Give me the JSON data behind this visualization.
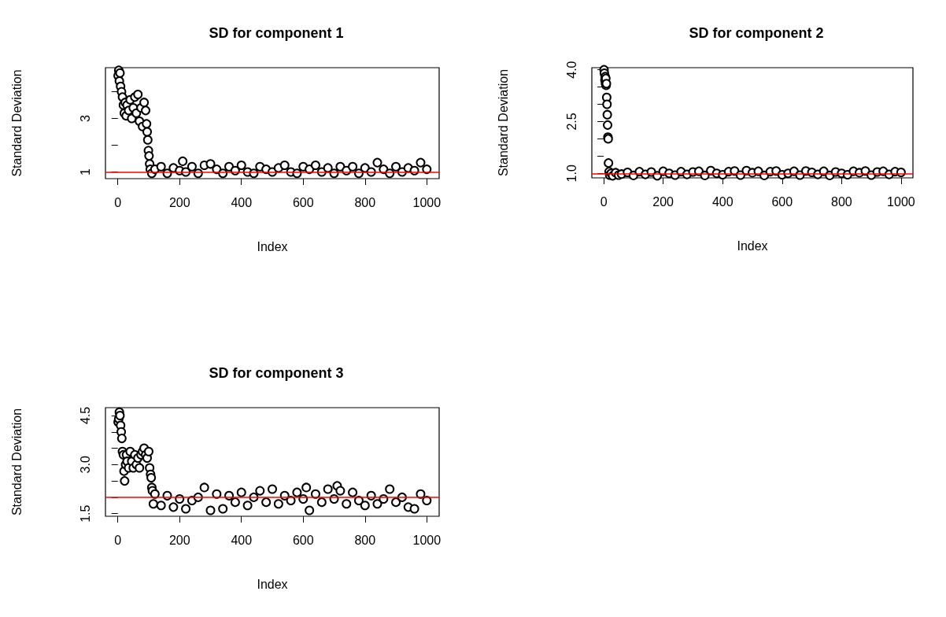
{
  "chart_data": [
    {
      "type": "scatter",
      "title": "SD for component 1",
      "xlabel": "Index",
      "ylabel": "Standard Deviation",
      "marker": "circle",
      "grid": false,
      "xlim": [
        -40,
        1040
      ],
      "xticks": [
        0,
        200,
        400,
        600,
        800,
        1000
      ],
      "ylim": [
        0.75,
        4.9
      ],
      "yticks": [
        1,
        {
          "value": 2,
          "label": null
        },
        3,
        {
          "value": 4,
          "label": null
        }
      ],
      "ref_lines": [
        {
          "axis": "y",
          "value": 1,
          "color": "#ff0000"
        }
      ],
      "series": [
        {
          "color": "#000000",
          "x": [
            1,
            3,
            5,
            7,
            9,
            12,
            15,
            18,
            21,
            24,
            27,
            30,
            35,
            40,
            45,
            50,
            55,
            60,
            65,
            70,
            75,
            80,
            85,
            90,
            93,
            95,
            97,
            99,
            101,
            103,
            105,
            110,
            120,
            140,
            160,
            180,
            200,
            210,
            220,
            240,
            260,
            280,
            300,
            320,
            340,
            360,
            380,
            400,
            420,
            440,
            460,
            480,
            500,
            520,
            540,
            560,
            580,
            600,
            620,
            640,
            660,
            680,
            700,
            720,
            740,
            760,
            780,
            800,
            820,
            840,
            860,
            880,
            900,
            920,
            940,
            960,
            980,
            1000
          ],
          "values": [
            4.6,
            4.8,
            4.4,
            4.7,
            4.2,
            4.0,
            3.8,
            3.5,
            3.2,
            3.6,
            3.1,
            3.5,
            3.3,
            3.7,
            3.0,
            3.4,
            3.8,
            3.2,
            3.9,
            2.9,
            3.4,
            2.7,
            3.6,
            3.3,
            2.8,
            2.5,
            2.2,
            1.8,
            1.6,
            1.3,
            1.1,
            0.95,
            1.1,
            1.2,
            0.95,
            1.15,
            1.05,
            1.4,
            1.0,
            1.2,
            0.95,
            1.25,
            1.3,
            1.1,
            0.95,
            1.2,
            1.05,
            1.25,
            1.0,
            0.95,
            1.2,
            1.1,
            1.0,
            1.15,
            1.25,
            1.0,
            0.95,
            1.2,
            1.1,
            1.25,
            1.0,
            1.15,
            0.95,
            1.2,
            1.05,
            1.2,
            0.95,
            1.15,
            1.0,
            1.35,
            1.1,
            0.95,
            1.2,
            1.0,
            1.15,
            1.05,
            1.35,
            1.1
          ]
        }
      ]
    },
    {
      "type": "scatter",
      "title": "SD for component 2",
      "xlabel": "Index",
      "ylabel": "Standard Deviation",
      "marker": "circle",
      "grid": false,
      "xlim": [
        -40,
        1040
      ],
      "xticks": [
        0,
        200,
        400,
        600,
        800,
        1000
      ],
      "ylim": [
        0.87,
        4.06
      ],
      "yticks": [
        "1.0",
        {
          "value": 1.5,
          "label": null
        },
        {
          "value": 2,
          "label": null
        },
        {
          "value": 2.5,
          "label": "2.5"
        },
        {
          "value": 3,
          "label": null
        },
        {
          "value": 3.5,
          "label": null
        },
        {
          "value": 4,
          "label": "4.0"
        }
      ],
      "ref_lines": [
        {
          "axis": "y",
          "value": 1,
          "color": "#ff0000"
        }
      ],
      "series": [
        {
          "color": "#000000",
          "x": [
            1,
            2,
            4,
            5,
            6,
            7,
            8,
            9,
            10,
            11,
            12,
            13,
            14,
            15,
            16,
            18,
            20,
            25,
            30,
            40,
            50,
            60,
            80,
            100,
            120,
            140,
            160,
            180,
            200,
            220,
            240,
            260,
            280,
            300,
            320,
            340,
            360,
            380,
            400,
            420,
            440,
            460,
            480,
            500,
            520,
            540,
            560,
            580,
            600,
            620,
            640,
            660,
            680,
            700,
            720,
            740,
            760,
            780,
            800,
            820,
            840,
            860,
            880,
            900,
            920,
            940,
            960,
            980,
            1000
          ],
          "values": [
            4.0,
            3.9,
            3.7,
            3.8,
            3.6,
            3.75,
            3.55,
            3.6,
            3.2,
            3.0,
            2.7,
            2.4,
            2.05,
            2.0,
            1.3,
            1.05,
            0.95,
            1.0,
            0.93,
            1.02,
            0.95,
            0.98,
            1.03,
            0.94,
            1.05,
            0.97,
            1.04,
            0.93,
            1.06,
            1.0,
            0.95,
            1.05,
            0.97,
            1.04,
            1.06,
            0.94,
            1.08,
            1.0,
            0.96,
            1.05,
            1.07,
            0.95,
            1.08,
            1.02,
            1.06,
            0.94,
            1.05,
            1.07,
            0.96,
            1.0,
            1.06,
            0.95,
            1.07,
            1.03,
            0.97,
            1.06,
            0.94,
            1.04,
            1.0,
            0.96,
            1.06,
            1.02,
            1.07,
            0.95,
            1.04,
            1.06,
            0.97,
            1.05,
            1.03
          ]
        }
      ]
    },
    {
      "type": "scatter",
      "title": "SD for component 3",
      "xlabel": "Index",
      "ylabel": "Standard Deviation",
      "marker": "circle",
      "grid": false,
      "xlim": [
        -40,
        1040
      ],
      "xticks": [
        0,
        200,
        400,
        600,
        800,
        1000
      ],
      "ylim": [
        1.42,
        4.74
      ],
      "yticks": [
        1.5,
        {
          "value": 2,
          "label": null
        },
        {
          "value": 2.5,
          "label": null
        },
        {
          "value": 3,
          "label": "3.0"
        },
        {
          "value": 3.5,
          "label": null
        },
        {
          "value": 4,
          "label": null
        },
        {
          "value": 4.5,
          "label": "4.5"
        }
      ],
      "ref_lines": [
        {
          "axis": "y",
          "value": 2,
          "color": "#ff0000"
        }
      ],
      "series": [
        {
          "color": "#000000",
          "x": [
            1,
            3,
            5,
            7,
            9,
            11,
            13,
            15,
            18,
            20,
            22,
            25,
            28,
            30,
            35,
            40,
            45,
            50,
            55,
            60,
            65,
            70,
            75,
            80,
            85,
            90,
            95,
            100,
            103,
            106,
            108,
            110,
            112,
            115,
            120,
            140,
            160,
            180,
            200,
            220,
            240,
            260,
            280,
            300,
            320,
            340,
            360,
            380,
            400,
            420,
            440,
            460,
            480,
            500,
            520,
            540,
            560,
            580,
            600,
            610,
            620,
            640,
            660,
            680,
            700,
            710,
            720,
            740,
            760,
            780,
            800,
            820,
            840,
            860,
            880,
            900,
            920,
            940,
            960,
            980,
            1000
          ],
          "values": [
            4.3,
            4.4,
            4.6,
            4.5,
            4.2,
            4.0,
            3.8,
            3.4,
            3.3,
            2.8,
            2.5,
            3.0,
            3.3,
            3.1,
            2.9,
            3.4,
            3.1,
            2.9,
            3.3,
            3.0,
            3.2,
            2.9,
            3.3,
            3.4,
            3.5,
            3.3,
            3.2,
            3.4,
            2.9,
            2.7,
            2.6,
            2.3,
            2.2,
            1.8,
            2.1,
            1.75,
            2.05,
            1.7,
            1.95,
            1.65,
            1.9,
            2.0,
            2.3,
            1.6,
            2.1,
            1.65,
            2.05,
            1.85,
            2.15,
            1.75,
            2.0,
            2.2,
            1.85,
            2.25,
            1.8,
            2.05,
            1.9,
            2.15,
            1.95,
            2.3,
            1.6,
            2.1,
            1.85,
            2.25,
            1.95,
            2.35,
            2.2,
            1.8,
            2.15,
            1.9,
            1.75,
            2.05,
            1.8,
            1.95,
            2.25,
            1.85,
            2.0,
            1.7,
            1.65,
            2.1,
            1.9
          ]
        }
      ]
    }
  ]
}
